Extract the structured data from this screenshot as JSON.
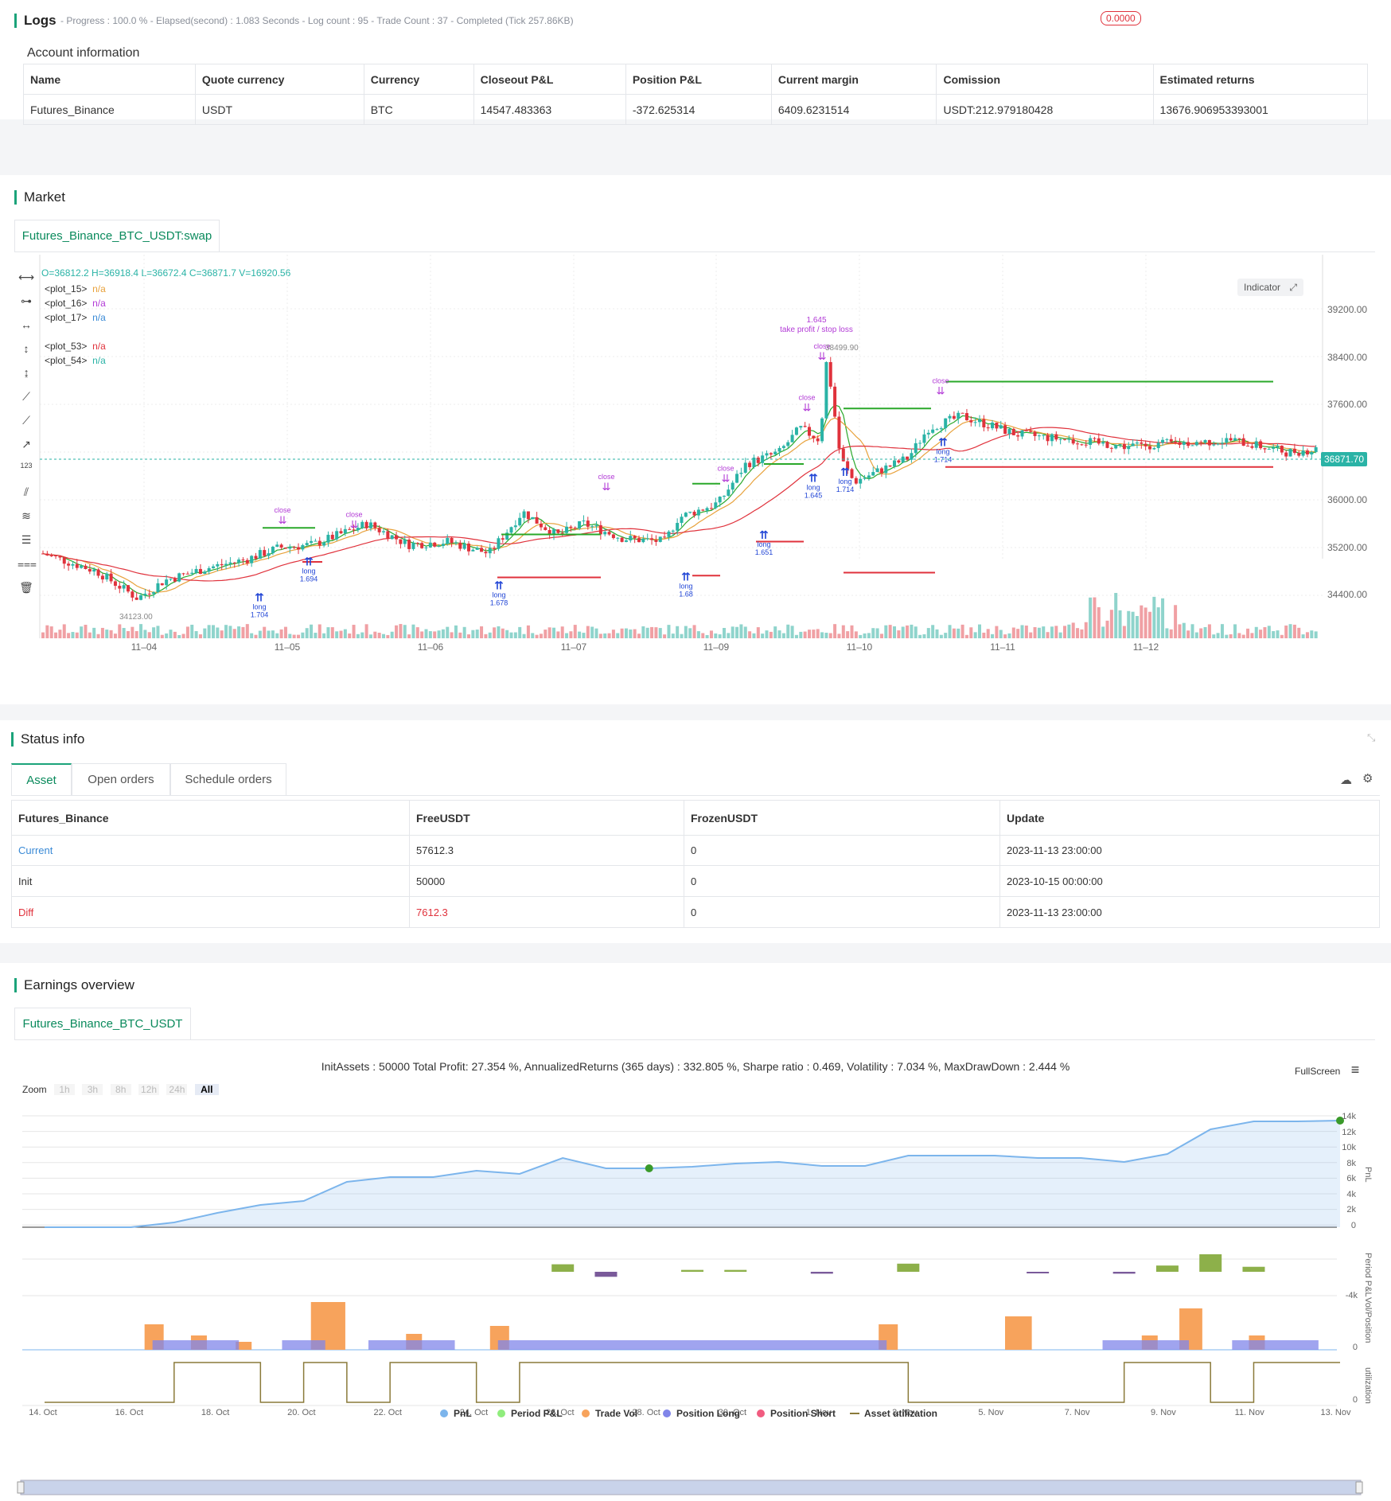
{
  "logs": {
    "title": "Logs",
    "status": "- Progress : 100.0 % - Elapsed(second) : 1.083  Seconds - Log count : 95 - Trade Count : 37 - Completed (Tick 257.86KB)",
    "badge": "0.0000"
  },
  "account": {
    "title": "Account information",
    "headers": [
      "Name",
      "Quote currency",
      "Currency",
      "Closeout P&L",
      "Position P&L",
      "Current margin",
      "Comission",
      "Estimated returns"
    ],
    "row": [
      "Futures_Binance",
      "USDT",
      "BTC",
      "14547.483363",
      "-372.625314",
      "6409.6231514",
      "USDT:212.979180428",
      "13676.906953393001"
    ]
  },
  "market": {
    "title": "Market",
    "tab": "Futures_Binance_BTC_USDT:swap",
    "ohlc": "O=36812.2 H=36918.4 L=36672.4 C=36871.7 V=16920.56",
    "indicator_btn": "Indicator",
    "legend": [
      {
        "name": "<plot_15>",
        "value": "n/a",
        "color": "#e8a23c"
      },
      {
        "name": "<plot_16>",
        "value": "n/a",
        "color": "#b23ad6"
      },
      {
        "name": "<plot_17>",
        "value": "n/a",
        "color": "#3a8ad6"
      },
      {
        "name": "<plot_53>",
        "value": "n/a",
        "color": "#e0323c"
      },
      {
        "name": "<plot_54>",
        "value": "n/a",
        "color": "#2ab3a6"
      }
    ],
    "price_ticks": [
      "39200.00",
      "38400.00",
      "37600.00",
      "36000.00",
      "35200.00",
      "34400.00"
    ],
    "last_price": "36871.70",
    "date_ticks": [
      "11–04",
      "11–05",
      "11–06",
      "11–07",
      "11–09",
      "11–10",
      "11–11",
      "11–12"
    ],
    "annotations": {
      "high": "38499.90",
      "low": "34123.00",
      "tp_value": "1.645",
      "tp_text": "take profit / stop loss",
      "close": "close",
      "long": "long",
      "long_values": [
        "1.704",
        "1.694",
        "1.678",
        "1.68",
        "1.651",
        "1.645",
        "1.714",
        "1.714"
      ]
    }
  },
  "status": {
    "title": "Status info",
    "tabs": [
      "Asset",
      "Open orders",
      "Schedule orders"
    ],
    "headers": [
      "Futures_Binance",
      "FreeUSDT",
      "FrozenUSDT",
      "Update"
    ],
    "rows": [
      [
        "Current",
        "57612.3",
        "0",
        "2023-11-13 23:00:00"
      ],
      [
        "Init",
        "50000",
        "0",
        "2023-10-15 00:00:00"
      ],
      [
        "Diff",
        "7612.3",
        "0",
        "2023-11-13 23:00:00"
      ]
    ]
  },
  "earnings": {
    "title": "Earnings overview",
    "tab": "Futures_Binance_BTC_USDT",
    "summary": "InitAssets : 50000 Total Profit: 27.354 %, AnnualizedReturns (365 days) : 332.805 %, Sharpe ratio : 0.469, Volatility : 7.034 %, MaxDrawDown : 2.444 %",
    "fullscreen": "FullScreen",
    "zoom_label": "Zoom",
    "zoom_options": [
      "1h",
      "3h",
      "8h",
      "12h",
      "24h",
      "All"
    ],
    "pnl_ticks": [
      "14k",
      "12k",
      "10k",
      "8k",
      "6k",
      "4k",
      "2k",
      "0"
    ],
    "period_tick": "-4k",
    "vol_tick": "0",
    "util_tick": "0",
    "axis_titles": [
      "PnL",
      "Period P&L",
      "Vol/Position",
      "utilization"
    ],
    "date_ticks": [
      "14. Oct",
      "16. Oct",
      "18. Oct",
      "20. Oct",
      "22. Oct",
      "24. Oct",
      "26. Oct",
      "28. Oct",
      "30. Oct",
      "1. Nov",
      "3. Nov",
      "5. Nov",
      "7. Nov",
      "9. Nov",
      "11. Nov",
      "13. Nov"
    ],
    "legend": [
      {
        "name": "PnL",
        "color": "#7cb5ec"
      },
      {
        "name": "Period P&L",
        "color": "#90ed7d"
      },
      {
        "name": "Trade Vol",
        "color": "#f7a35c"
      },
      {
        "name": "Position Long",
        "color": "#8085e9"
      },
      {
        "name": "Position Short",
        "color": "#f15c80"
      },
      {
        "name": "Asset utilization",
        "color": "#8a7a3a"
      }
    ],
    "chart_data": {
      "type": "area",
      "x_dates": [
        "14. Oct",
        "15. Oct",
        "16. Oct",
        "17. Oct",
        "18. Oct",
        "19. Oct",
        "20. Oct",
        "21. Oct",
        "22. Oct",
        "23. Oct",
        "24. Oct",
        "25. Oct",
        "26. Oct",
        "27. Oct",
        "28. Oct",
        "29. Oct",
        "30. Oct",
        "31. Oct",
        "1. Nov",
        "2. Nov",
        "3. Nov",
        "4. Nov",
        "5. Nov",
        "6. Nov",
        "7. Nov",
        "8. Nov",
        "9. Nov",
        "10. Nov",
        "11. Nov",
        "12. Nov",
        "13. Nov"
      ],
      "pnl": [
        0,
        0,
        0,
        600,
        1800,
        2800,
        3300,
        5700,
        6300,
        6300,
        7100,
        6700,
        8700,
        7400,
        7400,
        7600,
        8000,
        8200,
        7700,
        7700,
        9000,
        9000,
        9000,
        8700,
        8700,
        8200,
        9200,
        12300,
        13300,
        13300,
        13400
      ],
      "period_pnl": [
        0,
        0,
        0,
        0,
        0,
        0,
        0,
        0,
        0,
        0,
        0,
        0,
        1200,
        -800,
        0,
        300,
        300,
        0,
        -300,
        0,
        1300,
        0,
        0,
        -200,
        0,
        -300,
        1000,
        2800,
        800,
        0,
        0
      ],
      "ylim": [
        0,
        14000
      ]
    }
  }
}
